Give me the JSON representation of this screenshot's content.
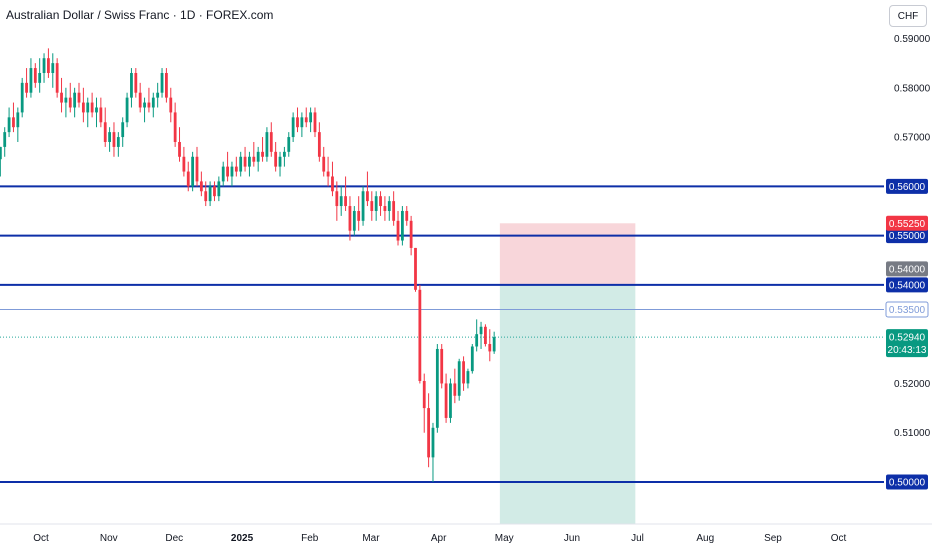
{
  "header": {
    "title": "Australian Dollar / Swiss Franc · 1D · FOREX.com",
    "currency": "CHF"
  },
  "chart_data": {
    "type": "candlestick",
    "title": "Australian Dollar / Swiss Franc · 1D · FOREX.com",
    "ylabel": "CHF",
    "ylim": [
      0.4948,
      0.5948
    ],
    "y_ticks": [
      "0.59000",
      "0.58000",
      "0.57000",
      "0.52000",
      "0.51000"
    ],
    "x_ticks": [
      "Oct",
      "Nov",
      "Dec",
      "2025",
      "Feb",
      "Mar",
      "Apr",
      "May",
      "Jun",
      "Jul",
      "Aug",
      "Sep",
      "Oct"
    ],
    "x_tick_days": [
      19,
      50,
      80,
      111,
      142,
      170,
      201,
      231,
      262,
      292,
      323,
      354,
      384
    ],
    "horizontal_lines": [
      {
        "value": 0.56,
        "label": "0.56000",
        "color": "#0d2fa8",
        "width": 2
      },
      {
        "value": 0.55,
        "label": "0.55000",
        "color": "#0d2fa8",
        "width": 2
      },
      {
        "value": 0.54,
        "label": "0.54000",
        "color": "#0d2fa8",
        "width": 2
      },
      {
        "value": 0.535,
        "label": "0.53500",
        "color": "#7f9bd8",
        "width": 1
      },
      {
        "value": 0.5,
        "label": "0.50000",
        "color": "#0d2fa8",
        "width": 2
      }
    ],
    "position": {
      "stop_loss": 0.5525,
      "stop_label": "0.55250",
      "entry": 0.54,
      "entry_label": "0.54000",
      "target": 0.4948,
      "start_day": 229,
      "end_day": 291
    },
    "last_price": {
      "value": 0.5294,
      "label": "0.52940",
      "countdown": "20:43:13"
    },
    "colors": {
      "up": "#089981",
      "down": "#f23645",
      "line": "#0d2fa8",
      "price_line": "#26a69a"
    },
    "candles": [
      [
        0.5655,
        0.568,
        0.562,
        0.568
      ],
      [
        0.568,
        0.572,
        0.566,
        0.571
      ],
      [
        0.571,
        0.576,
        0.57,
        0.574
      ],
      [
        0.574,
        0.577,
        0.571,
        0.572
      ],
      [
        0.572,
        0.576,
        0.569,
        0.575
      ],
      [
        0.575,
        0.582,
        0.574,
        0.581
      ],
      [
        0.581,
        0.584,
        0.578,
        0.579
      ],
      [
        0.579,
        0.586,
        0.578,
        0.584
      ],
      [
        0.584,
        0.585,
        0.58,
        0.581
      ],
      [
        0.581,
        0.586,
        0.579,
        0.583
      ],
      [
        0.583,
        0.587,
        0.581,
        0.586
      ],
      [
        0.586,
        0.588,
        0.582,
        0.583
      ],
      [
        0.583,
        0.587,
        0.58,
        0.585
      ],
      [
        0.585,
        0.586,
        0.578,
        0.579
      ],
      [
        0.579,
        0.582,
        0.575,
        0.577
      ],
      [
        0.577,
        0.58,
        0.574,
        0.578
      ],
      [
        0.578,
        0.581,
        0.575,
        0.576
      ],
      [
        0.576,
        0.58,
        0.574,
        0.579
      ],
      [
        0.579,
        0.581,
        0.576,
        0.577
      ],
      [
        0.577,
        0.58,
        0.573,
        0.575
      ],
      [
        0.575,
        0.578,
        0.572,
        0.577
      ],
      [
        0.577,
        0.579,
        0.574,
        0.575
      ],
      [
        0.575,
        0.578,
        0.572,
        0.576
      ],
      [
        0.576,
        0.578,
        0.572,
        0.573
      ],
      [
        0.573,
        0.576,
        0.568,
        0.569
      ],
      [
        0.569,
        0.572,
        0.567,
        0.571
      ],
      [
        0.571,
        0.573,
        0.566,
        0.568
      ],
      [
        0.568,
        0.571,
        0.566,
        0.57
      ],
      [
        0.57,
        0.574,
        0.568,
        0.573
      ],
      [
        0.573,
        0.579,
        0.572,
        0.578
      ],
      [
        0.578,
        0.584,
        0.576,
        0.583
      ],
      [
        0.583,
        0.584,
        0.578,
        0.579
      ],
      [
        0.579,
        0.581,
        0.575,
        0.576
      ],
      [
        0.576,
        0.578,
        0.573,
        0.577
      ],
      [
        0.577,
        0.58,
        0.575,
        0.576
      ],
      [
        0.576,
        0.579,
        0.574,
        0.578
      ],
      [
        0.578,
        0.581,
        0.576,
        0.579
      ],
      [
        0.579,
        0.584,
        0.578,
        0.583
      ],
      [
        0.583,
        0.584,
        0.577,
        0.578
      ],
      [
        0.578,
        0.58,
        0.573,
        0.575
      ],
      [
        0.575,
        0.577,
        0.568,
        0.569
      ],
      [
        0.569,
        0.572,
        0.565,
        0.566
      ],
      [
        0.566,
        0.568,
        0.562,
        0.563
      ],
      [
        0.563,
        0.565,
        0.559,
        0.56
      ],
      [
        0.56,
        0.567,
        0.559,
        0.566
      ],
      [
        0.566,
        0.568,
        0.56,
        0.561
      ],
      [
        0.561,
        0.563,
        0.558,
        0.559
      ],
      [
        0.559,
        0.561,
        0.556,
        0.557
      ],
      [
        0.557,
        0.561,
        0.556,
        0.56
      ],
      [
        0.56,
        0.561,
        0.557,
        0.558
      ],
      [
        0.558,
        0.562,
        0.557,
        0.561
      ],
      [
        0.561,
        0.565,
        0.56,
        0.564
      ],
      [
        0.564,
        0.567,
        0.561,
        0.562
      ],
      [
        0.562,
        0.565,
        0.56,
        0.564
      ],
      [
        0.564,
        0.566,
        0.562,
        0.563
      ],
      [
        0.563,
        0.567,
        0.562,
        0.566
      ],
      [
        0.566,
        0.568,
        0.563,
        0.564
      ],
      [
        0.564,
        0.567,
        0.562,
        0.566
      ],
      [
        0.566,
        0.569,
        0.564,
        0.565
      ],
      [
        0.565,
        0.568,
        0.563,
        0.567
      ],
      [
        0.567,
        0.57,
        0.565,
        0.566
      ],
      [
        0.566,
        0.572,
        0.565,
        0.571
      ],
      [
        0.571,
        0.573,
        0.566,
        0.567
      ],
      [
        0.567,
        0.569,
        0.563,
        0.564
      ],
      [
        0.564,
        0.567,
        0.562,
        0.566
      ],
      [
        0.566,
        0.568,
        0.564,
        0.567
      ],
      [
        0.567,
        0.571,
        0.566,
        0.57
      ],
      [
        0.57,
        0.575,
        0.569,
        0.574
      ],
      [
        0.574,
        0.576,
        0.571,
        0.572
      ],
      [
        0.572,
        0.575,
        0.57,
        0.574
      ],
      [
        0.574,
        0.576,
        0.572,
        0.573
      ],
      [
        0.573,
        0.576,
        0.571,
        0.575
      ],
      [
        0.575,
        0.576,
        0.57,
        0.571
      ],
      [
        0.571,
        0.573,
        0.565,
        0.566
      ],
      [
        0.566,
        0.568,
        0.562,
        0.563
      ],
      [
        0.563,
        0.566,
        0.56,
        0.562
      ],
      [
        0.562,
        0.565,
        0.558,
        0.559
      ],
      [
        0.559,
        0.561,
        0.553,
        0.556
      ],
      [
        0.556,
        0.56,
        0.554,
        0.558
      ],
      [
        0.558,
        0.562,
        0.555,
        0.556
      ],
      [
        0.556,
        0.558,
        0.549,
        0.551
      ],
      [
        0.551,
        0.556,
        0.55,
        0.555
      ],
      [
        0.555,
        0.558,
        0.551,
        0.553
      ],
      [
        0.553,
        0.56,
        0.552,
        0.559
      ],
      [
        0.559,
        0.563,
        0.556,
        0.557
      ],
      [
        0.557,
        0.559,
        0.553,
        0.555
      ],
      [
        0.555,
        0.559,
        0.553,
        0.558
      ],
      [
        0.558,
        0.559,
        0.554,
        0.556
      ],
      [
        0.556,
        0.558,
        0.553,
        0.555
      ],
      [
        0.555,
        0.558,
        0.553,
        0.557
      ],
      [
        0.557,
        0.559,
        0.552,
        0.553
      ],
      [
        0.553,
        0.555,
        0.548,
        0.549
      ],
      [
        0.549,
        0.556,
        0.548,
        0.555
      ],
      [
        0.555,
        0.556,
        0.552,
        0.553
      ],
      [
        0.553,
        0.554,
        0.546,
        0.5475
      ],
      [
        0.5475,
        0.5475,
        0.5386,
        0.539
      ],
      [
        0.539,
        0.54,
        0.52,
        0.5205
      ],
      [
        0.5205,
        0.522,
        0.51,
        0.515
      ],
      [
        0.515,
        0.518,
        0.503,
        0.505
      ],
      [
        0.505,
        0.512,
        0.5,
        0.511
      ],
      [
        0.511,
        0.528,
        0.51,
        0.527
      ],
      [
        0.527,
        0.528,
        0.519,
        0.52
      ],
      [
        0.52,
        0.522,
        0.512,
        0.513
      ],
      [
        0.513,
        0.521,
        0.512,
        0.52
      ],
      [
        0.52,
        0.523,
        0.516,
        0.5175
      ],
      [
        0.5175,
        0.525,
        0.5165,
        0.5245
      ],
      [
        0.5245,
        0.5255,
        0.5185,
        0.52
      ],
      [
        0.52,
        0.523,
        0.519,
        0.5225
      ],
      [
        0.5225,
        0.528,
        0.522,
        0.5275
      ],
      [
        0.5275,
        0.533,
        0.5265,
        0.53
      ],
      [
        0.53,
        0.5325,
        0.527,
        0.5315
      ],
      [
        0.5315,
        0.532,
        0.5275,
        0.528
      ],
      [
        0.528,
        0.531,
        0.5245,
        0.5265
      ],
      [
        0.5265,
        0.5305,
        0.526,
        0.5294
      ]
    ]
  }
}
